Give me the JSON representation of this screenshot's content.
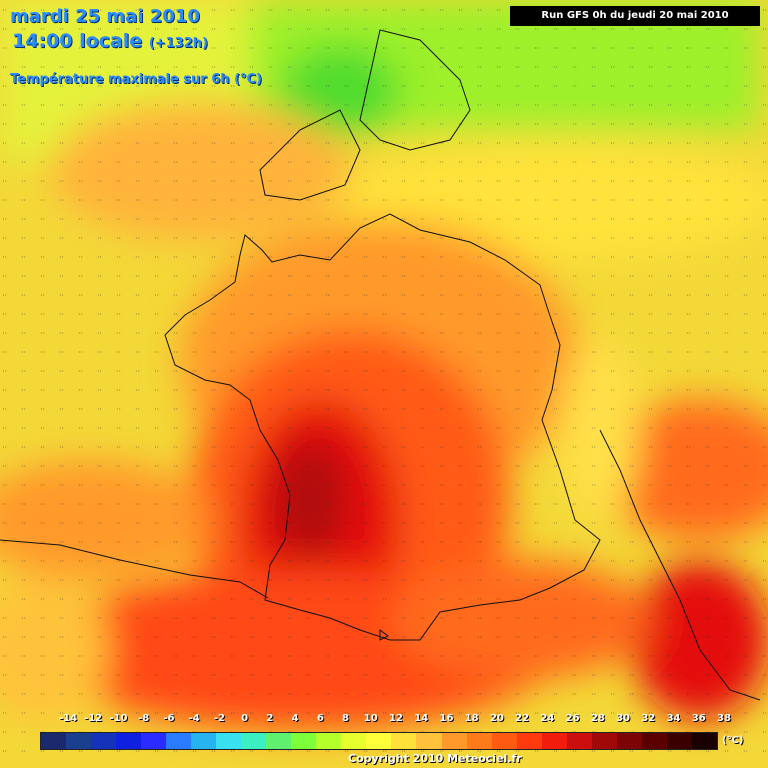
{
  "header": {
    "date": "mardi 25 mai 2010",
    "time": "14:00 locale",
    "lead": "(+132h)",
    "variable": "Température maximale sur 6h (°C)"
  },
  "run_label": "Run GFS 0h du jeudi 20 mai 2010",
  "legend": {
    "labels": [
      "-14",
      "-12",
      "-10",
      "-8",
      "-6",
      "-4",
      "-2",
      "0",
      "2",
      "4",
      "6",
      "8",
      "10",
      "12",
      "14",
      "16",
      "18",
      "20",
      "22",
      "24",
      "26",
      "28",
      "30",
      "32",
      "34",
      "36",
      "38"
    ],
    "colors": [
      "#1a2a6c",
      "#1b3f8f",
      "#1533b8",
      "#1020e0",
      "#2b2bff",
      "#2a7bff",
      "#26b3f0",
      "#38e0f0",
      "#3af0c0",
      "#60f070",
      "#7dff3a",
      "#b5ff2b",
      "#e6ff2d",
      "#ffff3a",
      "#ffe13a",
      "#ffc23a",
      "#ff9a2a",
      "#ff7a1a",
      "#ff5a12",
      "#ff3a0e",
      "#f21c0c",
      "#cc0e0e",
      "#a10808",
      "#7c0404",
      "#5a0000",
      "#3a0000",
      "#1a0000"
    ],
    "unit": "(°C)"
  },
  "copyright": "Copyright 2010 Meteociel.fr",
  "colors": {
    "title": "#2a8cff",
    "run_box_bg": "#000000"
  }
}
